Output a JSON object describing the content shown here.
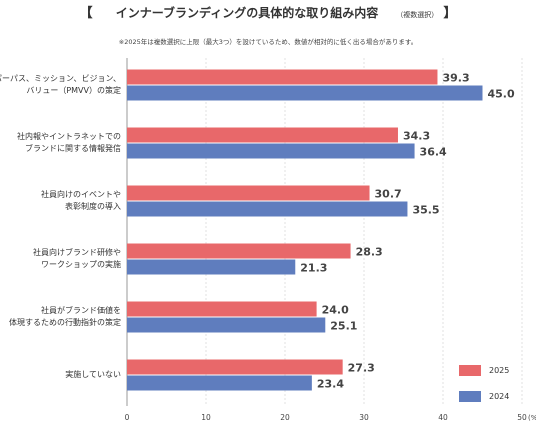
{
  "header": {
    "bracket_left": "【",
    "title": "インナーブランディングの具体的な取り組み内容",
    "subtitle": "（複数選択）",
    "bracket_right": "】",
    "note": "※2025年は複数選択に上限（最大3つ）を設けているため、数値が相対的に低く出る場合があります。"
  },
  "chart_data": {
    "type": "bar",
    "orientation": "horizontal",
    "categories": [
      [
        "パーパス、ミッション、ビジョン、",
        "バリュー（PMVV）の策定"
      ],
      [
        "社内報やイントラネットでの",
        "ブランドに関する情報発信"
      ],
      [
        "社員向けのイベントや",
        "表彰制度の導入"
      ],
      [
        "社員向けブランド研修や",
        "ワークショップの実施"
      ],
      [
        "社員がブランド価値を",
        "体現するための行動指針の策定"
      ],
      [
        "実施していない"
      ]
    ],
    "series": [
      {
        "name": "2025",
        "color": "#e8686a",
        "values": [
          39.3,
          34.3,
          30.7,
          28.3,
          24.0,
          27.3
        ]
      },
      {
        "name": "2024",
        "color": "#5f7dbe",
        "values": [
          45.0,
          36.4,
          35.5,
          21.3,
          25.1,
          23.4
        ]
      }
    ],
    "value_labels": [
      [
        "39.3",
        "34.3",
        "30.7",
        "28.3",
        "24.0",
        "27.3"
      ],
      [
        "45.0",
        "36.4",
        "35.5",
        "21.3",
        "25.1",
        "23.4"
      ]
    ],
    "xlim": [
      0,
      50
    ],
    "xticks": [
      0,
      10,
      20,
      30,
      40,
      50
    ],
    "xtick_labels": [
      "0",
      "10",
      "20",
      "30",
      "40",
      "50"
    ],
    "x_unit": "(%)",
    "grid": true,
    "legend_position": "bottom-right"
  }
}
